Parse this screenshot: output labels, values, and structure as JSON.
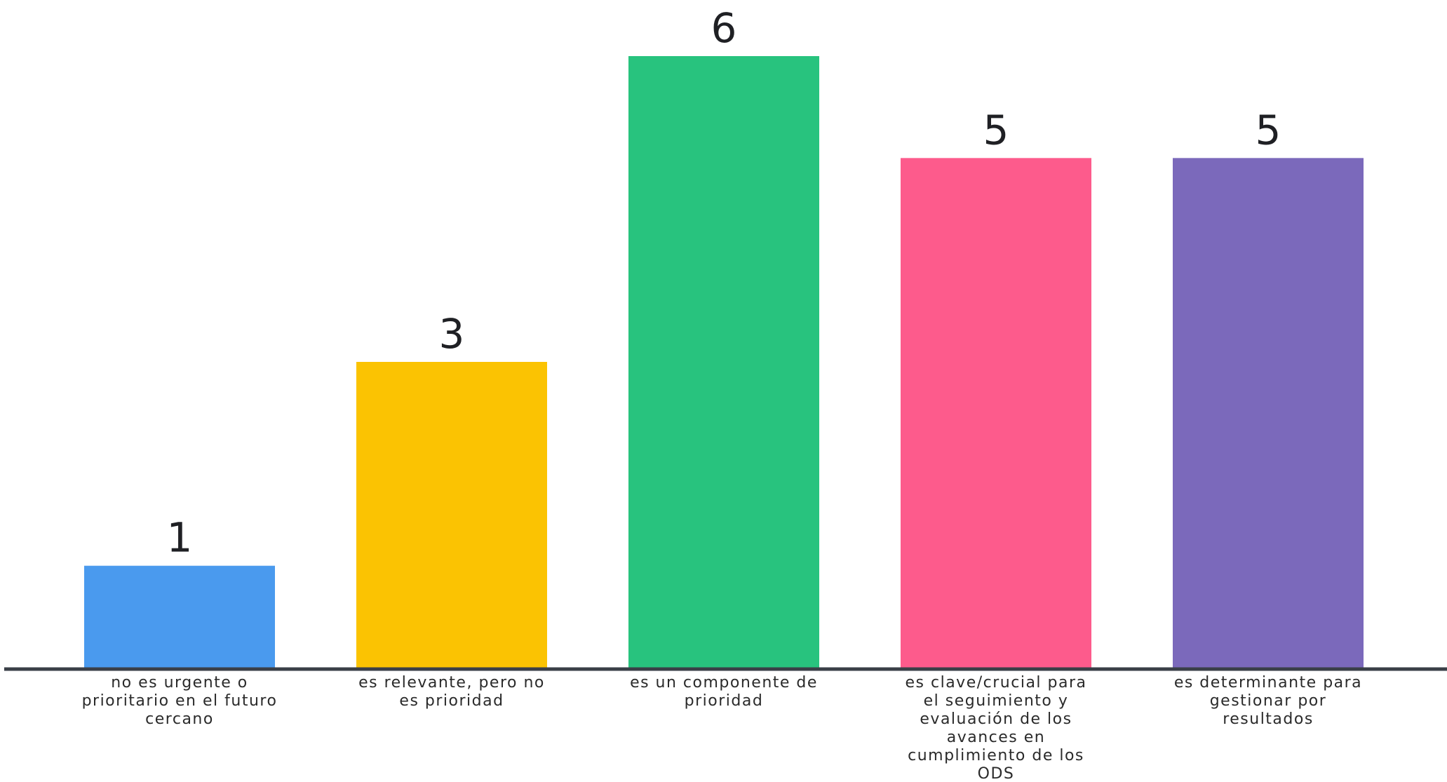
{
  "chart_data": {
    "type": "bar",
    "categories": [
      [
        "no es urgente o",
        "prioritario en el futuro",
        "cercano"
      ],
      [
        "es relevante, pero no",
        "es prioridad"
      ],
      [
        "es un componente de",
        "prioridad"
      ],
      [
        "es clave/crucial para",
        "el seguimiento y",
        "evaluación de los",
        "avances en",
        "cumplimiento de los",
        "ODS"
      ],
      [
        "es determinante para",
        "gestionar por",
        "resultados"
      ]
    ],
    "values": [
      1,
      3,
      6,
      5,
      5
    ],
    "colors": [
      "#4a9aee",
      "#fbc302",
      "#28c37e",
      "#fd5b8c",
      "#7b69bb"
    ],
    "value_labels": [
      "1",
      "3",
      "6",
      "5",
      "5"
    ],
    "ylim": [
      0,
      6
    ],
    "grid": false,
    "title": "",
    "xlabel": "",
    "ylabel": ""
  }
}
